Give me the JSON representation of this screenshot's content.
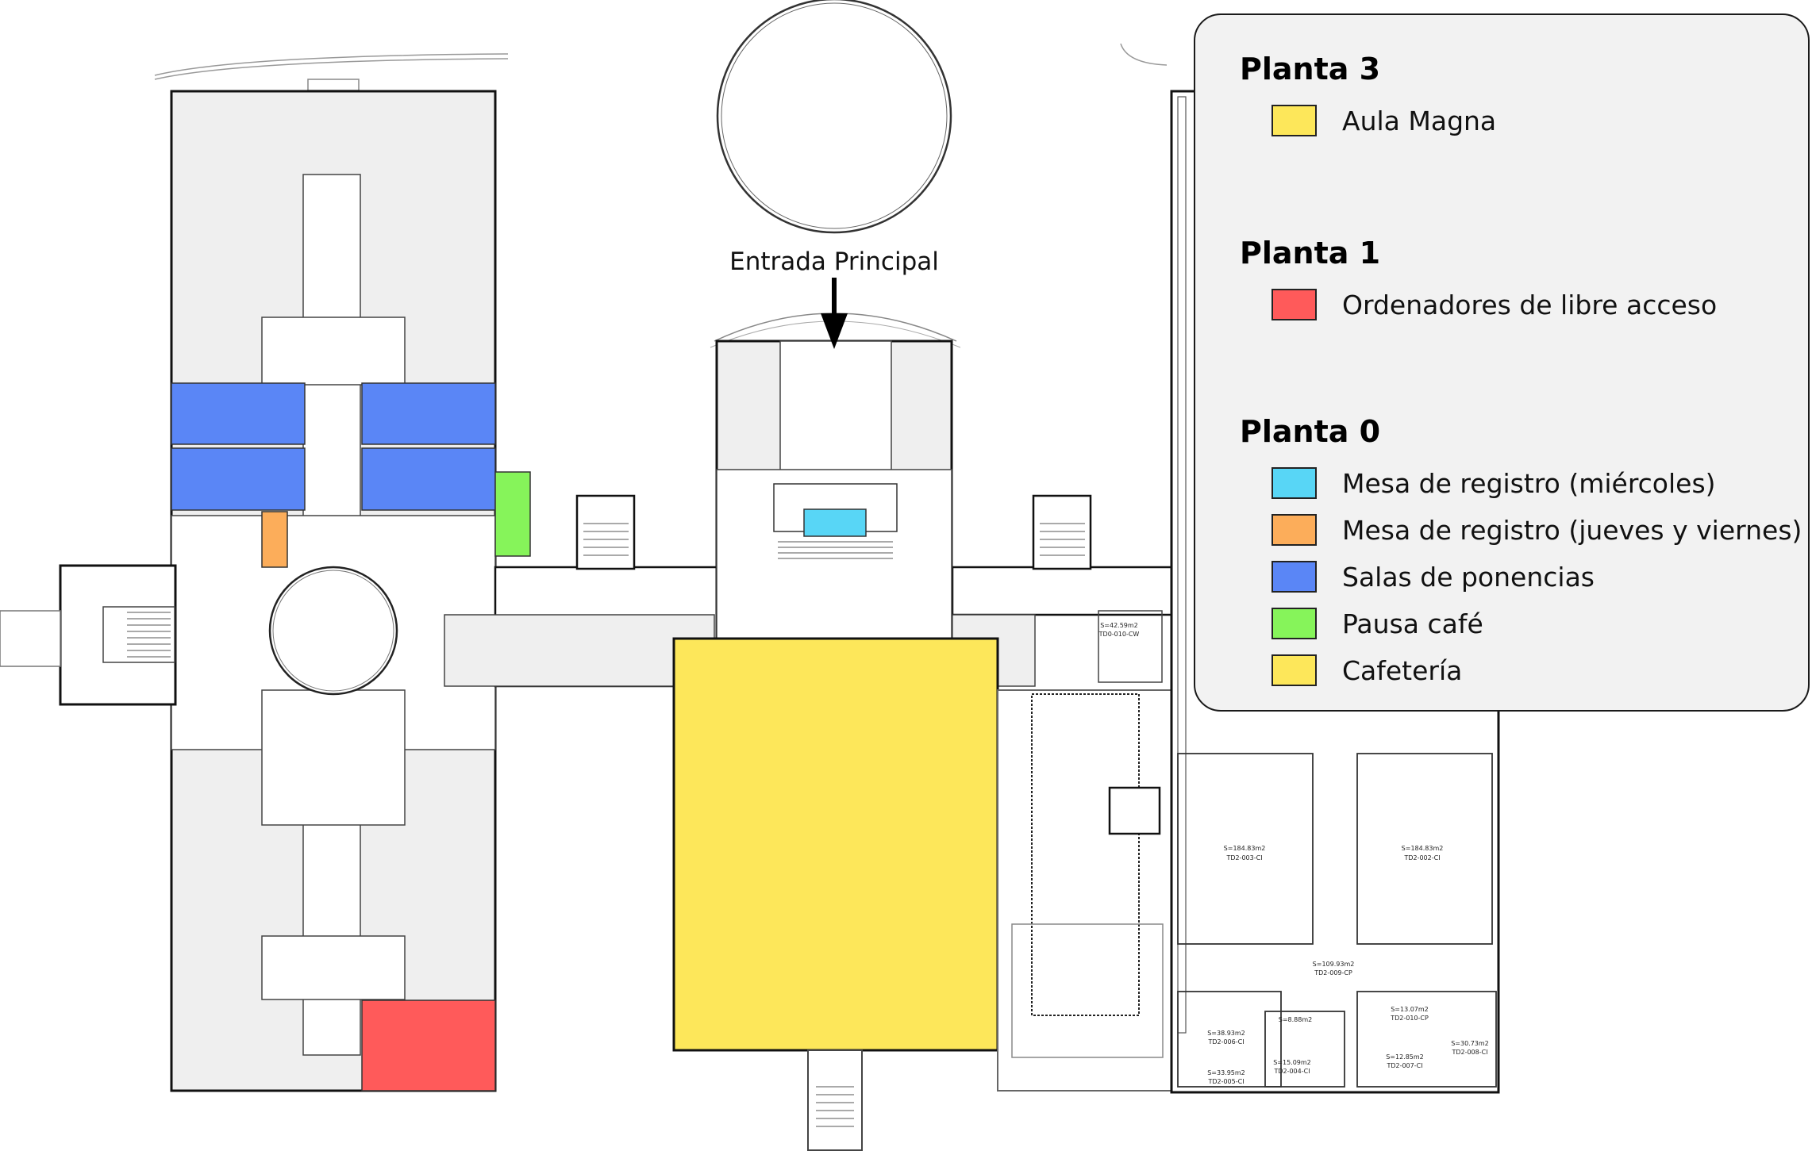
{
  "entrance_label": "Entrada Principal",
  "legend": {
    "floors": [
      {
        "title": "Planta 3",
        "items": [
          {
            "label": "Aula Magna",
            "color": "#fde75a"
          }
        ]
      },
      {
        "title": "Planta 1",
        "items": [
          {
            "label": "Ordenadores de libre acceso",
            "color": "#ff5a5a"
          }
        ]
      },
      {
        "title": "Planta 0",
        "items": [
          {
            "label": "Mesa de registro (miércoles)",
            "color": "#58d6f6"
          },
          {
            "label": "Mesa de registro (jueves y viernes)",
            "color": "#fcad5a"
          },
          {
            "label": "Salas de ponencias",
            "color": "#5a86f6"
          },
          {
            "label": "Pausa café",
            "color": "#86f45a"
          },
          {
            "label": "Cafetería",
            "color": "#fde75a"
          }
        ]
      }
    ]
  },
  "room_labels": [
    {
      "area": "S=184.83m2",
      "code": "TD2-003-CI"
    },
    {
      "area": "S=184.83m2",
      "code": "TD2-002-CI"
    },
    {
      "area": "S=109.93m2",
      "code": "TD2-009-CP"
    },
    {
      "area": "S=38.93m2",
      "code": "TD2-006-CI"
    },
    {
      "area": "S=8.88m2",
      "code": ""
    },
    {
      "area": "S=13.07m2",
      "code": "TD2-010-CP"
    },
    {
      "area": "S=12.85m2",
      "code": "TD2-007-CI"
    },
    {
      "area": "S=30.73m2",
      "code": "TD2-008-CI"
    },
    {
      "area": "S=15.09m2",
      "code": "TD2-004-CI"
    },
    {
      "area": "S=33.95m2",
      "code": "TD2-005-CI"
    },
    {
      "area": "S=42.59m2",
      "code": "TD0-010-CW"
    }
  ]
}
